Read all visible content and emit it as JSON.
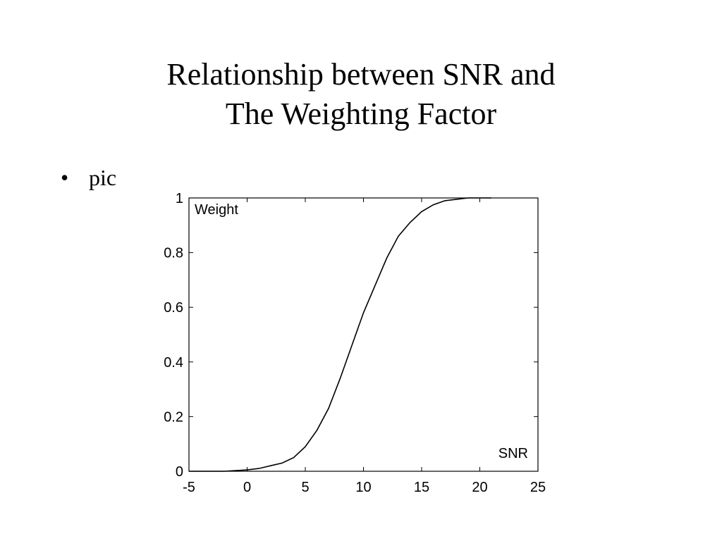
{
  "slide": {
    "title_line1": "Relationship between SNR and",
    "title_line2": "The Weighting Factor",
    "bullet": "pic"
  },
  "chart_data": {
    "type": "line",
    "title": "",
    "ylabel": "Weight",
    "xlabel": "SNR",
    "xlim": [
      -5,
      25
    ],
    "ylim": [
      0,
      1
    ],
    "xticks": [
      -5,
      0,
      5,
      10,
      15,
      20,
      25
    ],
    "yticks": [
      0,
      0.2,
      0.4,
      0.6,
      0.8,
      1
    ],
    "grid": false,
    "series": [
      {
        "x": [
          -5,
          -2,
          0,
          1,
          2,
          3,
          4,
          5,
          6,
          7,
          8,
          9,
          10,
          11,
          12,
          13,
          14,
          15,
          16,
          17,
          18,
          19,
          20,
          21
        ],
        "y": [
          0,
          0,
          0.005,
          0.01,
          0.02,
          0.03,
          0.05,
          0.09,
          0.15,
          0.23,
          0.34,
          0.46,
          0.58,
          0.68,
          0.78,
          0.86,
          0.91,
          0.95,
          0.975,
          0.99,
          0.995,
          1.0,
          1.0,
          1.0
        ]
      }
    ],
    "line_color": "#000000"
  }
}
